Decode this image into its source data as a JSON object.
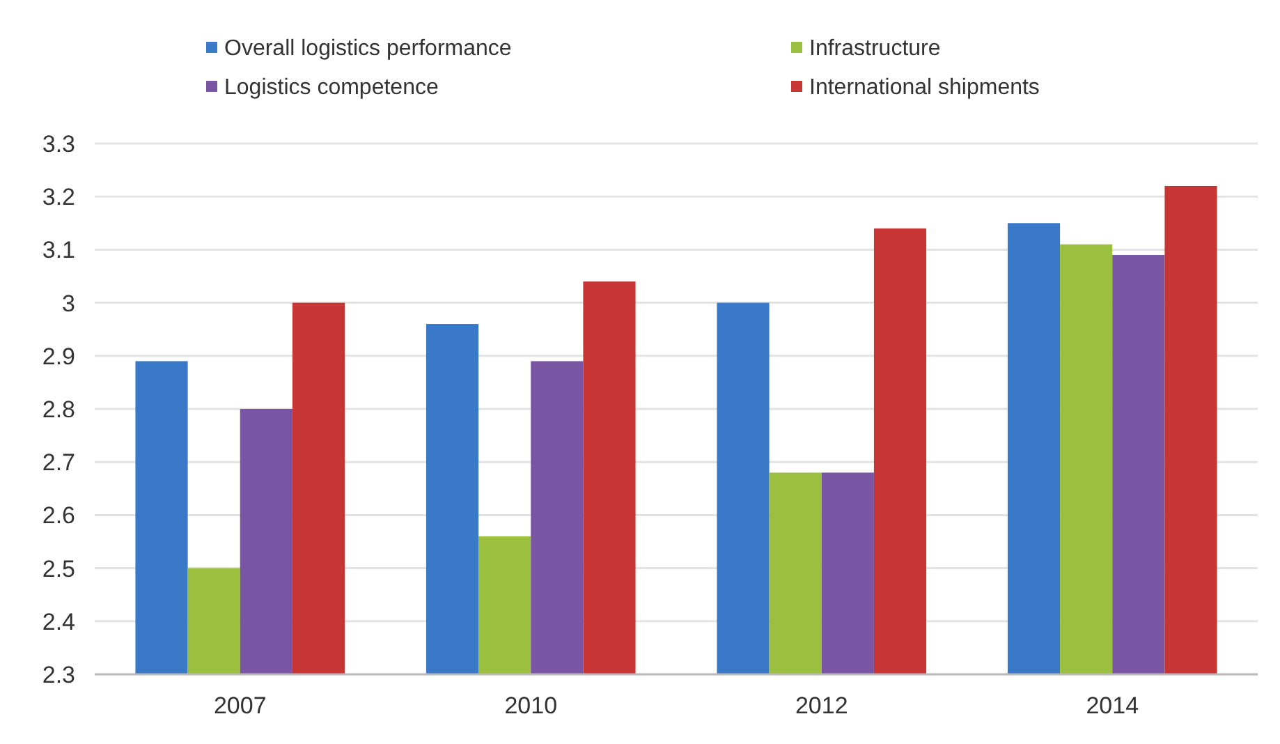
{
  "chart_data": {
    "type": "bar",
    "categories": [
      "2007",
      "2010",
      "2012",
      "2014"
    ],
    "series": [
      {
        "name": "Overall logistics performance",
        "color": "#3a78c8",
        "values": [
          2.89,
          2.96,
          3.0,
          3.15
        ]
      },
      {
        "name": "Infrastructure",
        "color": "#9bbf3e",
        "values": [
          2.5,
          2.56,
          2.68,
          3.11
        ]
      },
      {
        "name": "Logistics competence",
        "color": "#7a55a3",
        "values": [
          2.8,
          2.89,
          2.68,
          3.09
        ]
      },
      {
        "name": "International shipments",
        "color": "#c83535",
        "values": [
          3.0,
          3.04,
          3.14,
          3.22
        ]
      }
    ],
    "ylim": [
      2.3,
      3.3
    ],
    "yticks": [
      2.3,
      2.4,
      2.5,
      2.6,
      2.7,
      2.8,
      2.9,
      3,
      3.1,
      3.2,
      3.3
    ],
    "grid": "y",
    "legend": "top"
  }
}
